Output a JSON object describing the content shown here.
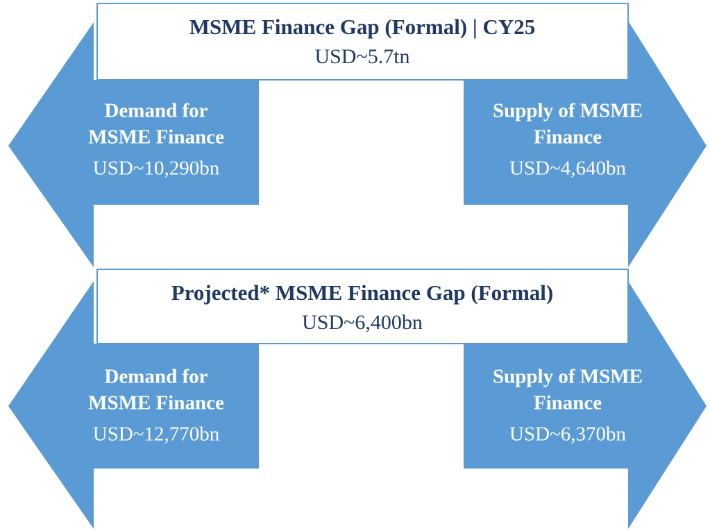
{
  "panels": [
    {
      "title": "MSME Finance Gap (Formal) | CY25",
      "value": "USD~5.7tn",
      "demand": {
        "label": [
          "Demand for",
          "MSME Finance"
        ],
        "value": "USD~10,290bn"
      },
      "supply": {
        "label": [
          "Supply of MSME",
          "Finance"
        ],
        "value": "USD~4,640bn"
      }
    },
    {
      "title": "Projected* MSME Finance Gap (Formal)",
      "value": "USD~6,400bn",
      "demand": {
        "label": [
          "Demand for",
          "MSME Finance"
        ],
        "value": "USD~12,770bn"
      },
      "supply": {
        "label": [
          "Supply of MSME",
          "Finance"
        ],
        "value": "USD~6,370bn"
      }
    }
  ]
}
